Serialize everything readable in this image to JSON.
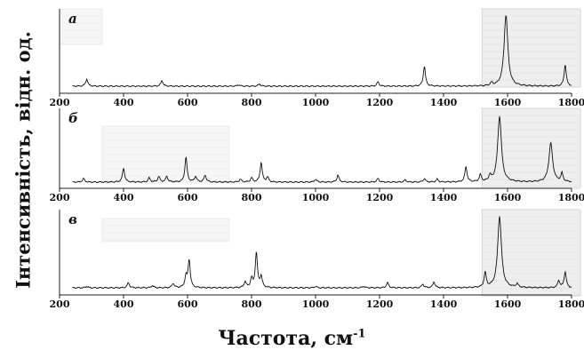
{
  "figure": {
    "ylabel": "Інтенсивність, відн. од.",
    "xlabel": "Частота, см",
    "xlabel_unit": "-1"
  },
  "chart_data": [
    {
      "type": "line",
      "panel_label": "а",
      "xlim": [
        200,
        1800
      ],
      "xticks": [
        200,
        400,
        600,
        800,
        1000,
        1200,
        1400,
        1600,
        1800
      ],
      "highlight": [
        1520,
        1800
      ],
      "peaks": [
        {
          "x": 285,
          "y": 0.1
        },
        {
          "x": 520,
          "y": 0.08
        },
        {
          "x": 760,
          "y": 0.02
        },
        {
          "x": 825,
          "y": 0.03
        },
        {
          "x": 1195,
          "y": 0.06
        },
        {
          "x": 1340,
          "y": 0.28
        },
        {
          "x": 1550,
          "y": 0.04
        },
        {
          "x": 1595,
          "y": 1.0
        },
        {
          "x": 1780,
          "y": 0.3
        }
      ]
    },
    {
      "type": "line",
      "panel_label": "б",
      "xlim": [
        200,
        1800
      ],
      "xticks": [
        200,
        400,
        600,
        800,
        1000,
        1200,
        1400,
        1600,
        1800
      ],
      "highlight": [
        1520,
        1800
      ],
      "peaks": [
        {
          "x": 275,
          "y": 0.05
        },
        {
          "x": 400,
          "y": 0.2
        },
        {
          "x": 480,
          "y": 0.06
        },
        {
          "x": 510,
          "y": 0.08
        },
        {
          "x": 535,
          "y": 0.08
        },
        {
          "x": 595,
          "y": 0.36
        },
        {
          "x": 625,
          "y": 0.08
        },
        {
          "x": 655,
          "y": 0.1
        },
        {
          "x": 765,
          "y": 0.04
        },
        {
          "x": 800,
          "y": 0.06
        },
        {
          "x": 830,
          "y": 0.28
        },
        {
          "x": 850,
          "y": 0.07
        },
        {
          "x": 1000,
          "y": 0.04
        },
        {
          "x": 1070,
          "y": 0.1
        },
        {
          "x": 1195,
          "y": 0.05
        },
        {
          "x": 1280,
          "y": 0.03
        },
        {
          "x": 1340,
          "y": 0.05
        },
        {
          "x": 1380,
          "y": 0.04
        },
        {
          "x": 1470,
          "y": 0.22
        },
        {
          "x": 1515,
          "y": 0.1
        },
        {
          "x": 1545,
          "y": 0.08
        },
        {
          "x": 1575,
          "y": 0.95
        },
        {
          "x": 1735,
          "y": 0.56
        },
        {
          "x": 1770,
          "y": 0.12
        }
      ]
    },
    {
      "type": "line",
      "panel_label": "в",
      "xlim": [
        200,
        1800
      ],
      "xticks": [
        200,
        400,
        600,
        800,
        1000,
        1200,
        1400,
        1600,
        1800
      ],
      "highlight": [
        1520,
        1800
      ],
      "peaks": [
        {
          "x": 285,
          "y": 0.02
        },
        {
          "x": 415,
          "y": 0.07
        },
        {
          "x": 490,
          "y": 0.03
        },
        {
          "x": 555,
          "y": 0.06
        },
        {
          "x": 595,
          "y": 0.15
        },
        {
          "x": 605,
          "y": 0.38
        },
        {
          "x": 780,
          "y": 0.08
        },
        {
          "x": 800,
          "y": 0.12
        },
        {
          "x": 815,
          "y": 0.48
        },
        {
          "x": 830,
          "y": 0.15
        },
        {
          "x": 1000,
          "y": 0.02
        },
        {
          "x": 1150,
          "y": 0.02
        },
        {
          "x": 1225,
          "y": 0.07
        },
        {
          "x": 1335,
          "y": 0.05
        },
        {
          "x": 1370,
          "y": 0.08
        },
        {
          "x": 1530,
          "y": 0.2
        },
        {
          "x": 1575,
          "y": 0.98
        },
        {
          "x": 1630,
          "y": 0.05
        },
        {
          "x": 1760,
          "y": 0.1
        },
        {
          "x": 1780,
          "y": 0.22
        }
      ]
    }
  ]
}
